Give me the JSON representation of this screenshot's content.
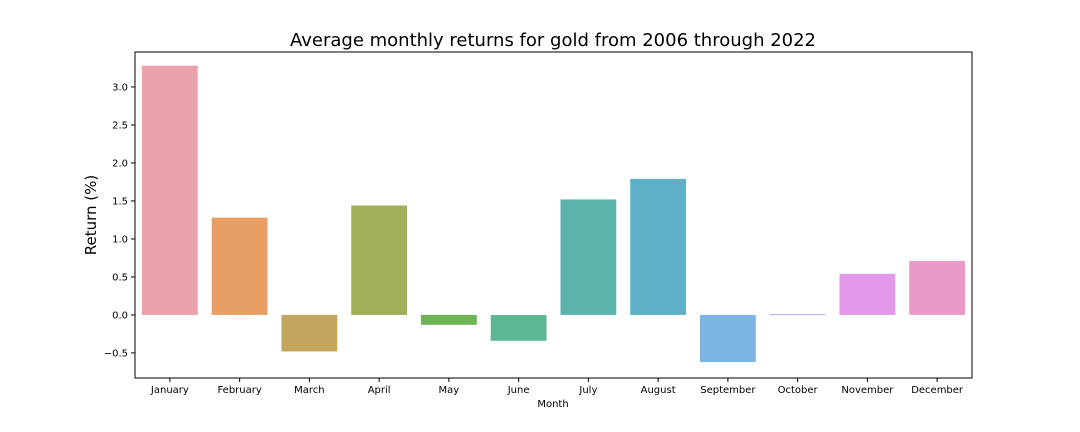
{
  "chart_data": {
    "type": "bar",
    "title": "Average monthly returns for gold from 2006 through 2022",
    "xlabel": "Month",
    "ylabel": "Return (%)",
    "categories": [
      "January",
      "February",
      "March",
      "April",
      "May",
      "June",
      "July",
      "August",
      "September",
      "October",
      "November",
      "December"
    ],
    "values": [
      3.28,
      1.28,
      -0.48,
      1.44,
      -0.13,
      -0.34,
      1.52,
      1.79,
      -0.62,
      0.01,
      0.54,
      0.71
    ],
    "colors": [
      "#eba1ab",
      "#e89f65",
      "#c3a55d",
      "#a3af59",
      "#6cb552",
      "#5cb792",
      "#5cb3aa",
      "#5eb0c6",
      "#7cb4e3",
      "#b5a9e8",
      "#e398e8",
      "#e99ac9"
    ],
    "ylim": [
      -0.83,
      3.46
    ],
    "yticks": [
      -0.5,
      0.0,
      0.5,
      1.0,
      1.5,
      2.0,
      2.5,
      3.0
    ],
    "ytick_labels": [
      "−0.5",
      "0.0",
      "0.5",
      "1.0",
      "1.5",
      "2.0",
      "2.5",
      "3.0"
    ],
    "grid": false,
    "legend": "none"
  }
}
